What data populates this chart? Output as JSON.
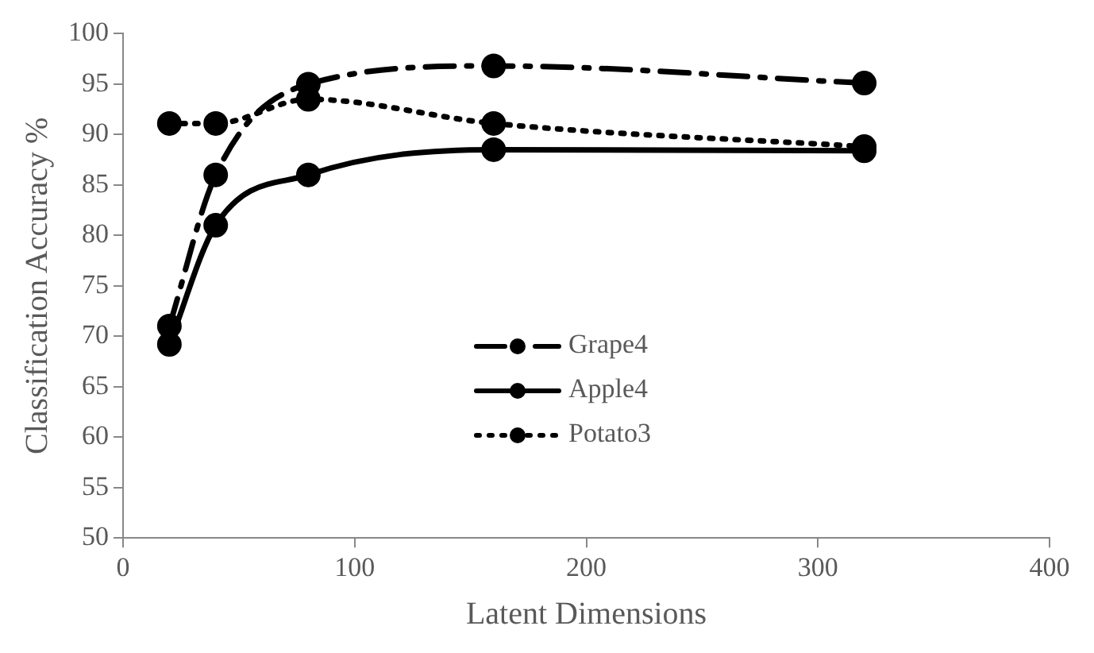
{
  "chart_data": {
    "type": "line",
    "xlabel": "Latent Dimensions",
    "ylabel": "Classification Accuracy %",
    "x": [
      20,
      40,
      80,
      160,
      320
    ],
    "series": [
      {
        "name": "Grape4",
        "color": "#000000",
        "line_style": "dashed",
        "values": [
          71,
          86,
          95,
          96.8,
          95.1
        ]
      },
      {
        "name": "Apple4",
        "color": "#000000",
        "line_style": "solid",
        "values": [
          69.2,
          81,
          86,
          88.5,
          88.4
        ]
      },
      {
        "name": "Potato3",
        "color": "#000000",
        "line_style": "dotted",
        "values": [
          91.1,
          91.1,
          93.5,
          91.1,
          88.8
        ]
      }
    ],
    "xlim": [
      0,
      400
    ],
    "xticks": [
      0,
      100,
      200,
      300,
      400
    ],
    "ylim": [
      50,
      100
    ],
    "yticks": [
      50,
      55,
      60,
      65,
      70,
      75,
      80,
      85,
      90,
      95,
      100
    ],
    "grid": false,
    "legend": "center",
    "marker": "circle"
  }
}
